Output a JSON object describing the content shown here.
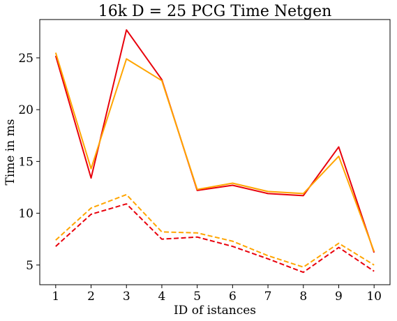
{
  "chart_data": {
    "type": "line",
    "title": "16k    D = 25    PCG Time    Netgen",
    "xlabel": "ID of istances",
    "ylabel": "Time in ms",
    "x": [
      1,
      2,
      3,
      4,
      5,
      6,
      7,
      8,
      9,
      10
    ],
    "xticks": [
      "1",
      "2",
      "3",
      "4",
      "5",
      "6",
      "7",
      "8",
      "9",
      "10"
    ],
    "yticks": [
      "5",
      "10",
      "15",
      "20",
      "25"
    ],
    "ytick_values": [
      5,
      10,
      15,
      20,
      25
    ],
    "xlim": [
      0.55,
      10.45
    ],
    "ylim": [
      3.1,
      28.7
    ],
    "grid": false,
    "legend": "none",
    "series": [
      {
        "color": "#e8000b",
        "style": "solid",
        "values": [
          25.2,
          13.4,
          27.7,
          22.9,
          12.2,
          12.7,
          11.9,
          11.7,
          16.4,
          6.2
        ]
      },
      {
        "color": "#ffa500",
        "style": "solid",
        "values": [
          25.5,
          14.3,
          24.9,
          22.8,
          12.3,
          12.9,
          12.1,
          11.9,
          15.5,
          6.3
        ]
      },
      {
        "color": "#ffa500",
        "style": "dashed",
        "values": [
          7.4,
          10.5,
          11.8,
          8.2,
          8.1,
          7.3,
          5.9,
          4.8,
          7.1,
          5.0
        ]
      },
      {
        "color": "#e8000b",
        "style": "dashed",
        "values": [
          6.8,
          9.9,
          10.9,
          7.5,
          7.7,
          6.8,
          5.6,
          4.3,
          6.7,
          4.4
        ]
      }
    ]
  }
}
